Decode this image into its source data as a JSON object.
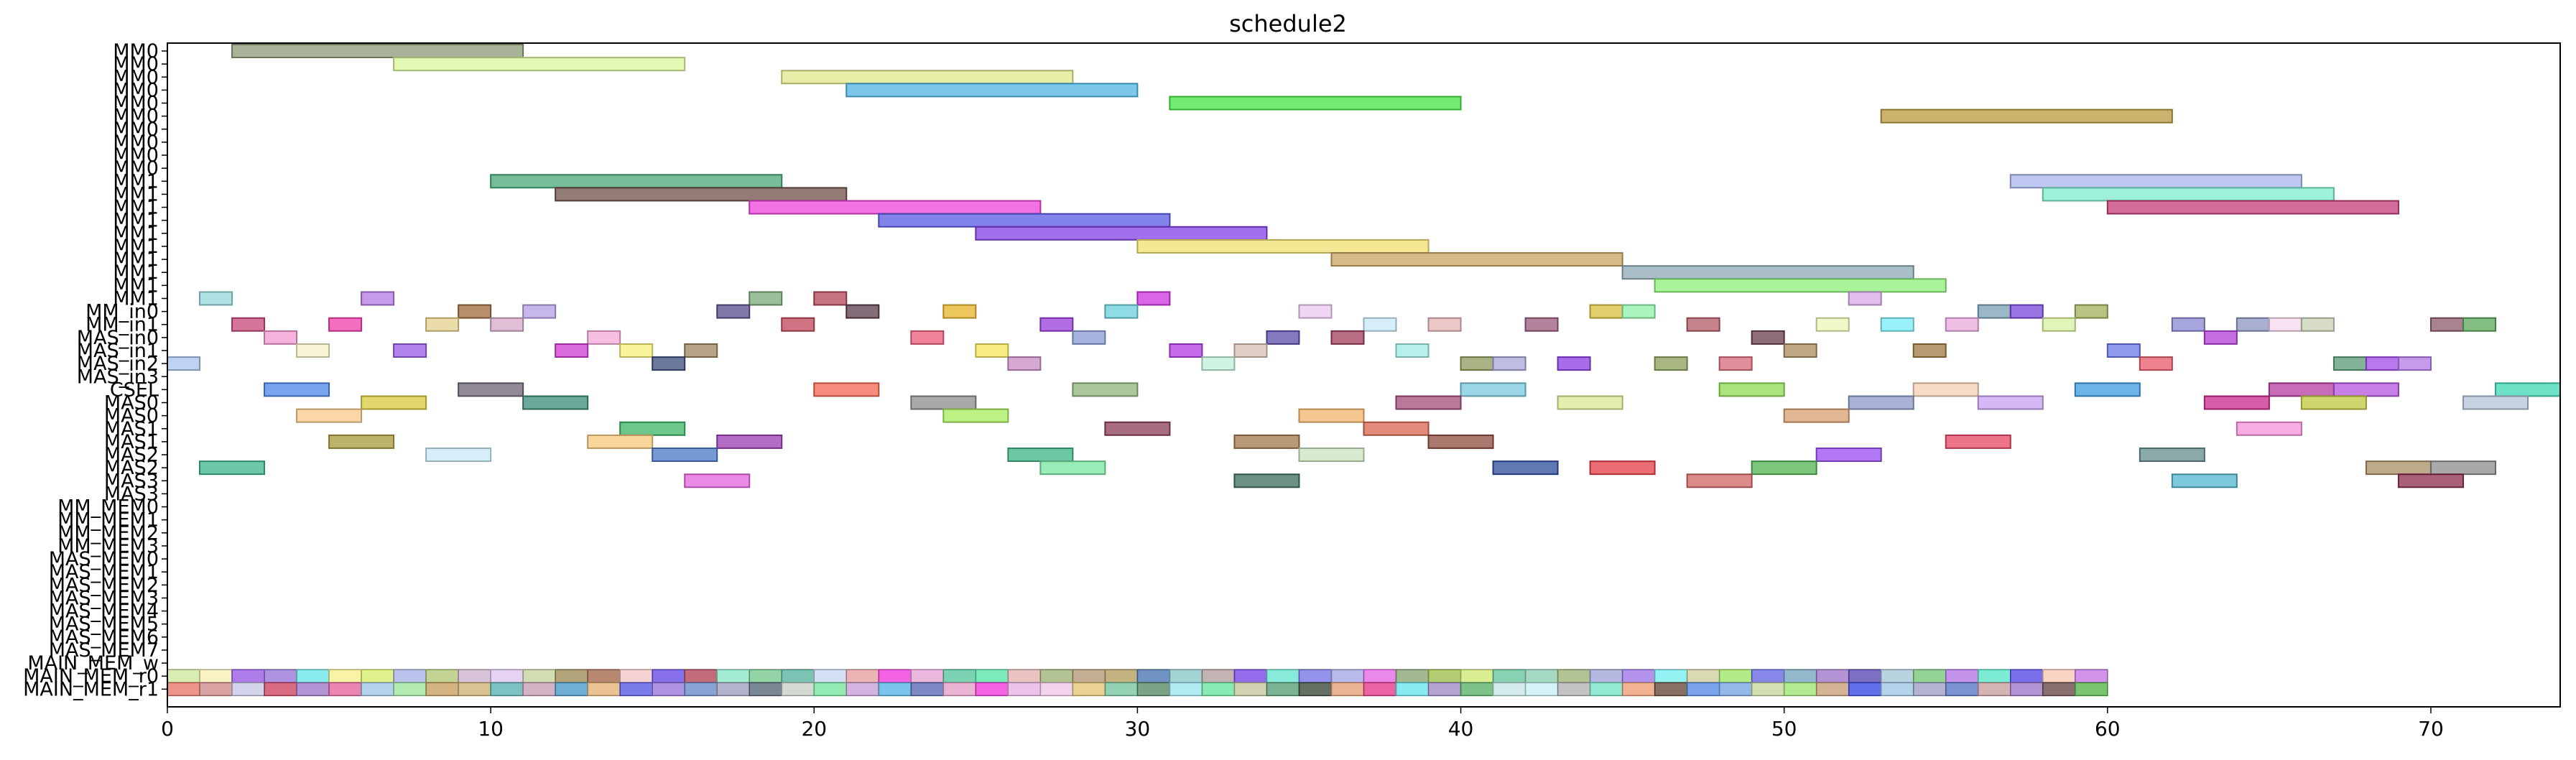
{
  "chart_data": {
    "type": "gantt",
    "title": "schedule2",
    "xlabel": "",
    "ylabel": "",
    "xlim": [
      0,
      74
    ],
    "x_ticks": [
      0,
      10,
      20,
      30,
      40,
      50,
      60,
      70
    ],
    "grid": false,
    "legend": "none",
    "rows": [
      "MM0",
      "MM0",
      "MM0",
      "MM0",
      "MM0",
      "MM0",
      "MM0",
      "MM0",
      "MM0",
      "MM0",
      "MM1",
      "MM1",
      "MM1",
      "MM1",
      "MM1",
      "MM1",
      "MM1",
      "MM1",
      "MM1",
      "MM1",
      "MM_in0",
      "MM_in1",
      "MAS_in0",
      "MAS_in1",
      "MAS_in2",
      "MAS_in3",
      "CSEL",
      "MAS0",
      "MAS0",
      "MAS1",
      "MAS1",
      "MAS2",
      "MAS2",
      "MAS3",
      "MAS3",
      "MM_MEM0",
      "MM_MEM1",
      "MM_MEM2",
      "MM_MEM3",
      "MAS_MEM0",
      "MAS_MEM1",
      "MAS_MEM2",
      "MAS_MEM3",
      "MAS_MEM4",
      "MAS_MEM5",
      "MAS_MEM6",
      "MAS_MEM7",
      "MAIN_MEM_w",
      "MAIN_MEM_r0",
      "MAIN_MEM_r1"
    ],
    "tasks": [
      {
        "row": 0,
        "start": 2,
        "end": 11,
        "color": "#8c9a78"
      },
      {
        "row": 1,
        "start": 7,
        "end": 16,
        "color": "#d8f59a"
      },
      {
        "row": 2,
        "start": 19,
        "end": 28,
        "color": "#e0e889"
      },
      {
        "row": 3,
        "start": 21,
        "end": 30,
        "color": "#4fb6e6"
      },
      {
        "row": 4,
        "start": 31,
        "end": 40,
        "color": "#45e645"
      },
      {
        "row": 5,
        "start": 53,
        "end": 62,
        "color": "#b89b3c"
      },
      {
        "row": 10,
        "start": 10,
        "end": 19,
        "color": "#48a878"
      },
      {
        "row": 10,
        "start": 57,
        "end": 66,
        "color": "#a8b4ec"
      },
      {
        "row": 11,
        "start": 12,
        "end": 21,
        "color": "#6e5046"
      },
      {
        "row": 11,
        "start": 58,
        "end": 67,
        "color": "#7ceccc"
      },
      {
        "row": 12,
        "start": 18,
        "end": 27,
        "color": "#f040dc"
      },
      {
        "row": 12,
        "start": 60,
        "end": 69,
        "color": "#c43c78"
      },
      {
        "row": 13,
        "start": 22,
        "end": 31,
        "color": "#5a5ae6"
      },
      {
        "row": 14,
        "start": 25,
        "end": 34,
        "color": "#8240e6"
      },
      {
        "row": 15,
        "start": 30,
        "end": 39,
        "color": "#f0e070"
      },
      {
        "row": 16,
        "start": 36,
        "end": 45,
        "color": "#c8a460"
      },
      {
        "row": 17,
        "start": 45,
        "end": 54,
        "color": "#8ca8b4"
      },
      {
        "row": 18,
        "start": 46,
        "end": 55,
        "color": "#8ef07a"
      },
      {
        "row": 19,
        "start": 1,
        "end": 2,
        "color": "#94dada"
      },
      {
        "row": 19,
        "start": 6,
        "end": 7,
        "color": "#b478e6"
      },
      {
        "row": 19,
        "start": 18,
        "end": 19,
        "color": "#7aa87a"
      },
      {
        "row": 19,
        "start": 20,
        "end": 21,
        "color": "#b4465a"
      },
      {
        "row": 19,
        "start": 30,
        "end": 31,
        "color": "#cc33dd"
      },
      {
        "row": 19,
        "start": 52,
        "end": 53,
        "color": "#d8a8e6"
      },
      {
        "row": 20,
        "start": 9,
        "end": 10,
        "color": "#a06a3c"
      },
      {
        "row": 20,
        "start": 11,
        "end": 12,
        "color": "#b4a0e6"
      },
      {
        "row": 20,
        "start": 17,
        "end": 18,
        "color": "#5a4c8c"
      },
      {
        "row": 20,
        "start": 21,
        "end": 22,
        "color": "#5a3c4c"
      },
      {
        "row": 20,
        "start": 24,
        "end": 25,
        "color": "#e6b428"
      },
      {
        "row": 20,
        "start": 29,
        "end": 30,
        "color": "#6ad0dc"
      },
      {
        "row": 20,
        "start": 35,
        "end": 36,
        "color": "#e8c8f0"
      },
      {
        "row": 20,
        "start": 44,
        "end": 45,
        "color": "#d8c03c"
      },
      {
        "row": 20,
        "start": 45,
        "end": 46,
        "color": "#8ef0a8"
      },
      {
        "row": 20,
        "start": 56,
        "end": 57,
        "color": "#78a0b4"
      },
      {
        "row": 20,
        "start": 57,
        "end": 58,
        "color": "#7846d8"
      },
      {
        "row": 20,
        "start": 59,
        "end": 60,
        "color": "#a0b05a"
      },
      {
        "row": 21,
        "start": 2,
        "end": 3,
        "color": "#c84678"
      },
      {
        "row": 21,
        "start": 5,
        "end": 6,
        "color": "#f03caa"
      },
      {
        "row": 21,
        "start": 8,
        "end": 9,
        "color": "#e6d08c"
      },
      {
        "row": 21,
        "start": 10,
        "end": 11,
        "color": "#d4a8c8"
      },
      {
        "row": 21,
        "start": 19,
        "end": 20,
        "color": "#c0465a"
      },
      {
        "row": 21,
        "start": 27,
        "end": 28,
        "color": "#9a3cd8"
      },
      {
        "row": 21,
        "start": 37,
        "end": 38,
        "color": "#c8e8f8"
      },
      {
        "row": 21,
        "start": 39,
        "end": 40,
        "color": "#e6b4b4"
      },
      {
        "row": 21,
        "start": 42,
        "end": 43,
        "color": "#9a5a7a"
      },
      {
        "row": 21,
        "start": 47,
        "end": 48,
        "color": "#b45a64"
      },
      {
        "row": 21,
        "start": 51,
        "end": 52,
        "color": "#eef4b4"
      },
      {
        "row": 21,
        "start": 53,
        "end": 54,
        "color": "#78ecf8"
      },
      {
        "row": 21,
        "start": 55,
        "end": 56,
        "color": "#e8a8dc"
      },
      {
        "row": 21,
        "start": 58,
        "end": 59,
        "color": "#d8f0a0"
      },
      {
        "row": 21,
        "start": 62,
        "end": 63,
        "color": "#8888d0"
      },
      {
        "row": 21,
        "start": 64,
        "end": 65,
        "color": "#8c94c0"
      },
      {
        "row": 21,
        "start": 65,
        "end": 66,
        "color": "#f4d8f0"
      },
      {
        "row": 21,
        "start": 66,
        "end": 67,
        "color": "#c8d0b4"
      },
      {
        "row": 21,
        "start": 70,
        "end": 71,
        "color": "#8c5a6a"
      },
      {
        "row": 21,
        "start": 71,
        "end": 72,
        "color": "#5ca85c"
      },
      {
        "row": 22,
        "start": 3,
        "end": 4,
        "color": "#f098d0"
      },
      {
        "row": 22,
        "start": 13,
        "end": 14,
        "color": "#f4a8d8"
      },
      {
        "row": 22,
        "start": 23,
        "end": 24,
        "color": "#ec5a78"
      },
      {
        "row": 22,
        "start": 28,
        "end": 29,
        "color": "#8c9ad8"
      },
      {
        "row": 22,
        "start": 34,
        "end": 35,
        "color": "#5a4ca8"
      },
      {
        "row": 22,
        "start": 36,
        "end": 37,
        "color": "#a03c5a"
      },
      {
        "row": 22,
        "start": 49,
        "end": 50,
        "color": "#6a3c4c"
      },
      {
        "row": 22,
        "start": 63,
        "end": 64,
        "color": "#b43cd8"
      },
      {
        "row": 23,
        "start": 4,
        "end": 5,
        "color": "#f4f0c8"
      },
      {
        "row": 23,
        "start": 7,
        "end": 8,
        "color": "#9a5ae6"
      },
      {
        "row": 23,
        "start": 12,
        "end": 13,
        "color": "#d03cd0"
      },
      {
        "row": 23,
        "start": 14,
        "end": 15,
        "color": "#f4f078"
      },
      {
        "row": 23,
        "start": 16,
        "end": 17,
        "color": "#a08460"
      },
      {
        "row": 23,
        "start": 25,
        "end": 26,
        "color": "#f4e45a"
      },
      {
        "row": 23,
        "start": 31,
        "end": 32,
        "color": "#b43ce6"
      },
      {
        "row": 23,
        "start": 33,
        "end": 34,
        "color": "#d8c0b4"
      },
      {
        "row": 23,
        "start": 38,
        "end": 39,
        "color": "#a0ece4"
      },
      {
        "row": 23,
        "start": 50,
        "end": 51,
        "color": "#a88c5a"
      },
      {
        "row": 23,
        "start": 54,
        "end": 55,
        "color": "#a07840"
      },
      {
        "row": 23,
        "start": 60,
        "end": 61,
        "color": "#6a78e6"
      },
      {
        "row": 24,
        "start": 0,
        "end": 1,
        "color": "#a8c4ec"
      },
      {
        "row": 24,
        "start": 15,
        "end": 16,
        "color": "#3c4c7a"
      },
      {
        "row": 24,
        "start": 26,
        "end": 27,
        "color": "#c88cc0"
      },
      {
        "row": 24,
        "start": 32,
        "end": 33,
        "color": "#c0f0d8"
      },
      {
        "row": 24,
        "start": 40,
        "end": 41,
        "color": "#8c9a5a"
      },
      {
        "row": 24,
        "start": 41,
        "end": 42,
        "color": "#a8a8d8"
      },
      {
        "row": 24,
        "start": 43,
        "end": 44,
        "color": "#8c3ce6"
      },
      {
        "row": 24,
        "start": 46,
        "end": 47,
        "color": "#8ca05a"
      },
      {
        "row": 24,
        "start": 48,
        "end": 49,
        "color": "#d86a7a"
      },
      {
        "row": 24,
        "start": 61,
        "end": 62,
        "color": "#e65a6a"
      },
      {
        "row": 24,
        "start": 67,
        "end": 68,
        "color": "#5a9a78"
      },
      {
        "row": 24,
        "start": 68,
        "end": 69,
        "color": "#a04ce6"
      },
      {
        "row": 24,
        "start": 69,
        "end": 70,
        "color": "#b478e6"
      },
      {
        "row": 26,
        "start": 3,
        "end": 5,
        "color": "#4a84ec"
      },
      {
        "row": 26,
        "start": 9,
        "end": 11,
        "color": "#6e6474"
      },
      {
        "row": 26,
        "start": 20,
        "end": 22,
        "color": "#f46450"
      },
      {
        "row": 26,
        "start": 28,
        "end": 30,
        "color": "#90b478"
      },
      {
        "row": 26,
        "start": 40,
        "end": 42,
        "color": "#78c8dc"
      },
      {
        "row": 26,
        "start": 48,
        "end": 50,
        "color": "#8cdc50"
      },
      {
        "row": 26,
        "start": 54,
        "end": 56,
        "color": "#f4d0b4"
      },
      {
        "row": 26,
        "start": 59,
        "end": 61,
        "color": "#3c9ce0"
      },
      {
        "row": 26,
        "start": 65,
        "end": 67,
        "color": "#b43ca0"
      },
      {
        "row": 26,
        "start": 67,
        "end": 69,
        "color": "#b454dc"
      },
      {
        "row": 26,
        "start": 72,
        "end": 74,
        "color": "#3cd8b4"
      },
      {
        "row": 27,
        "start": 6,
        "end": 8,
        "color": "#d8c83c"
      },
      {
        "row": 27,
        "start": 11,
        "end": 13,
        "color": "#3c8c78"
      },
      {
        "row": 27,
        "start": 23,
        "end": 25,
        "color": "#8c8c8c"
      },
      {
        "row": 27,
        "start": 38,
        "end": 40,
        "color": "#a04c78"
      },
      {
        "row": 27,
        "start": 43,
        "end": 45,
        "color": "#dce890"
      },
      {
        "row": 27,
        "start": 52,
        "end": 54,
        "color": "#8c9ac8"
      },
      {
        "row": 27,
        "start": 56,
        "end": 58,
        "color": "#c8a0f4"
      },
      {
        "row": 27,
        "start": 63,
        "end": 65,
        "color": "#c8288c"
      },
      {
        "row": 27,
        "start": 66,
        "end": 68,
        "color": "#c0c83c"
      },
      {
        "row": 27,
        "start": 71,
        "end": 73,
        "color": "#b4c4d8"
      },
      {
        "row": 28,
        "start": 4,
        "end": 6,
        "color": "#f8c88c"
      },
      {
        "row": 28,
        "start": 24,
        "end": 26,
        "color": "#a8ec5a"
      },
      {
        "row": 28,
        "start": 35,
        "end": 37,
        "color": "#f4b46c"
      },
      {
        "row": 28,
        "start": 50,
        "end": 52,
        "color": "#d8a070"
      },
      {
        "row": 29,
        "start": 14,
        "end": 16,
        "color": "#3cb464"
      },
      {
        "row": 29,
        "start": 29,
        "end": 31,
        "color": "#8c3c5a"
      },
      {
        "row": 29,
        "start": 37,
        "end": 39,
        "color": "#dc6450"
      },
      {
        "row": 29,
        "start": 64,
        "end": 66,
        "color": "#f490d8"
      },
      {
        "row": 30,
        "start": 5,
        "end": 7,
        "color": "#a89a3c"
      },
      {
        "row": 30,
        "start": 13,
        "end": 15,
        "color": "#f8c878"
      },
      {
        "row": 30,
        "start": 17,
        "end": 19,
        "color": "#9a3cb4"
      },
      {
        "row": 30,
        "start": 33,
        "end": 35,
        "color": "#a0784c"
      },
      {
        "row": 30,
        "start": 39,
        "end": 41,
        "color": "#8c4c3c"
      },
      {
        "row": 30,
        "start": 55,
        "end": 57,
        "color": "#e64664"
      },
      {
        "row": 31,
        "start": 8,
        "end": 10,
        "color": "#c8e8f4"
      },
      {
        "row": 31,
        "start": 15,
        "end": 17,
        "color": "#4a78c8"
      },
      {
        "row": 31,
        "start": 26,
        "end": 28,
        "color": "#3cb484"
      },
      {
        "row": 31,
        "start": 35,
        "end": 37,
        "color": "#c8e4c0"
      },
      {
        "row": 31,
        "start": 51,
        "end": 53,
        "color": "#9a4cf0"
      },
      {
        "row": 31,
        "start": 61,
        "end": 63,
        "color": "#648c8c"
      },
      {
        "row": 32,
        "start": 1,
        "end": 3,
        "color": "#3cb48c"
      },
      {
        "row": 32,
        "start": 27,
        "end": 29,
        "color": "#78e6a0"
      },
      {
        "row": 32,
        "start": 41,
        "end": 43,
        "color": "#2c4c9a"
      },
      {
        "row": 32,
        "start": 44,
        "end": 46,
        "color": "#e63c46"
      },
      {
        "row": 32,
        "start": 49,
        "end": 51,
        "color": "#50b450"
      },
      {
        "row": 32,
        "start": 68,
        "end": 70,
        "color": "#a88c64"
      },
      {
        "row": 32,
        "start": 70,
        "end": 72,
        "color": "#8c8c8c"
      },
      {
        "row": 33,
        "start": 16,
        "end": 18,
        "color": "#e664dc"
      },
      {
        "row": 33,
        "start": 33,
        "end": 35,
        "color": "#3c6e5a"
      },
      {
        "row": 33,
        "start": 47,
        "end": 49,
        "color": "#d06464"
      },
      {
        "row": 33,
        "start": 62,
        "end": 64,
        "color": "#50b4cc"
      },
      {
        "row": 33,
        "start": 69,
        "end": 71,
        "color": "#8c2c4c"
      }
    ],
    "main_mem_r0_colors": [
      "#d0e8a0",
      "#f8f0b4",
      "#9a5ae6",
      "#9a78d8",
      "#6ce6e6",
      "#f8f090",
      "#d8f070",
      "#a8b4e6",
      "#b4c878",
      "#d0b4d0",
      "#e0c8f0",
      "#c8d4a0",
      "#a08c5a",
      "#a86a4c",
      "#f4c8c8",
      "#6a4ce6",
      "#b4465a",
      "#8ce6c8",
      "#78c890",
      "#5ab4a0",
      "#c8d8f4",
      "#e6a0a0",
      "#f03cdc",
      "#e6a8d8",
      "#5ac8a0",
      "#5ae6a8",
      "#e6b4b4",
      "#a0b478",
      "#b49a78",
      "#b4a060",
      "#4c78b4",
      "#8cc8c8",
      "#b4a0a0",
      "#7846e6",
      "#6ae6d0",
      "#7878e6",
      "#a8a8e6",
      "#e66ae6",
      "#8ca878",
      "#a0c050",
      "#d0e878",
      "#6ac8a0",
      "#90d0b4",
      "#a0b478",
      "#a0a8d8",
      "#a078e6",
      "#78f0f0",
      "#d0d0a0",
      "#a0e66a",
      "#6a6ae6",
      "#78a8c0",
      "#a078c8",
      "#5a4cb4",
      "#a8c8d8",
      "#78c878",
      "#b478e6",
      "#5ae6c8",
      "#5a4ce6",
      "#f8c8b4",
      "#c878e6"
    ],
    "main_mem_r1_colors": [
      "#e8786a",
      "#d08c8c",
      "#c8c8e6",
      "#d04664",
      "#a078c8",
      "#e664a0",
      "#a0c8e6",
      "#a0e6a0",
      "#c8a060",
      "#d0b478",
      "#5ab4b4",
      "#c8a0b4",
      "#4c9ac8",
      "#e6b478",
      "#5a5ae6",
      "#9a78d8",
      "#6a8cc8",
      "#a0a0c0",
      "#5a6a78",
      "#c8d0c8",
      "#78e6a0",
      "#c8a0d8",
      "#5ab4e6",
      "#5a6ab4",
      "#e6a0c8",
      "#f03cdc",
      "#e6b4e6",
      "#f0c8e6",
      "#e6c878",
      "#78c8a0",
      "#5a8c6a",
      "#a0e6f0",
      "#6ae6a0",
      "#c8c8a0",
      "#5aa078",
      "#3c4c3c",
      "#e6a078",
      "#e63c8c",
      "#6ae6f0",
      "#a08cc8",
      "#5ab46a",
      "#c8e6e6",
      "#c8f0f4",
      "#b4b4b4",
      "#78e6c8",
      "#f0a078",
      "#6a4c3c",
      "#5a8ce6",
      "#78a8e6",
      "#c8d8a0",
      "#a0e678",
      "#c8a078",
      "#3c4ce6",
      "#a0c8e6",
      "#a0a0c8",
      "#5a78c8",
      "#c8a0a0",
      "#a078c8",
      "#6a4c4c",
      "#5ab44c"
    ]
  }
}
